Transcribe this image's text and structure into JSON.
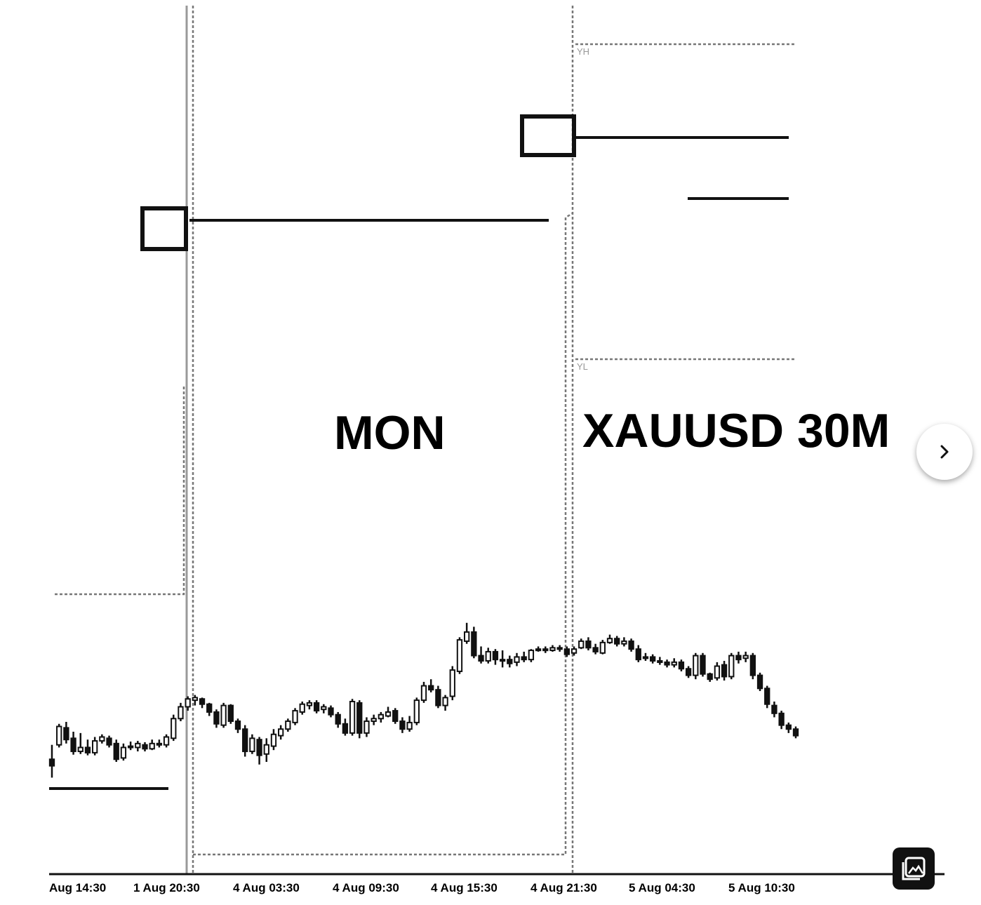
{
  "chart_data": {
    "type": "candlestick",
    "title": "",
    "xlabel": "",
    "ylabel": "",
    "x_ticks": [
      "Aug 14:30",
      "1 Aug 20:30",
      "4 Aug 03:30",
      "4 Aug 09:30",
      "4 Aug 15:30",
      "4 Aug 21:30",
      "5 Aug 04:30",
      "5 Aug 10:30"
    ],
    "annotations": [
      "MON",
      "XAUUSD 30M"
    ],
    "level_labels": [
      "YH",
      "YL"
    ],
    "candles": [
      [
        1028,
        1018,
        1050,
        1000
      ],
      [
        1050,
        1078,
        1082,
        1046
      ],
      [
        1076,
        1058,
        1085,
        1052
      ],
      [
        1060,
        1040,
        1070,
        1035
      ],
      [
        1040,
        1046,
        1068,
        1036
      ],
      [
        1046,
        1038,
        1058,
        1034
      ],
      [
        1038,
        1056,
        1062,
        1034
      ],
      [
        1056,
        1062,
        1066,
        1052
      ],
      [
        1060,
        1050,
        1064,
        1046
      ],
      [
        1052,
        1028,
        1058,
        1024
      ],
      [
        1030,
        1046,
        1052,
        1026
      ],
      [
        1046,
        1048,
        1055,
        1042
      ],
      [
        1046,
        1052,
        1056,
        1040
      ],
      [
        1050,
        1044,
        1054,
        1040
      ],
      [
        1044,
        1052,
        1058,
        1042
      ],
      [
        1052,
        1050,
        1058,
        1046
      ],
      [
        1050,
        1062,
        1066,
        1046
      ],
      [
        1060,
        1090,
        1096,
        1056
      ],
      [
        1090,
        1108,
        1114,
        1086
      ],
      [
        1108,
        1120,
        1124,
        1102
      ],
      [
        1118,
        1122,
        1126,
        1110
      ],
      [
        1120,
        1112,
        1122,
        1106
      ],
      [
        1112,
        1100,
        1114,
        1094
      ],
      [
        1100,
        1082,
        1104,
        1076
      ],
      [
        1080,
        1110,
        1114,
        1076
      ],
      [
        1110,
        1086,
        1112,
        1082
      ],
      [
        1086,
        1074,
        1090,
        1068
      ],
      [
        1074,
        1040,
        1080,
        1032
      ],
      [
        1040,
        1060,
        1066,
        1036
      ],
      [
        1058,
        1034,
        1062,
        1020
      ],
      [
        1036,
        1050,
        1060,
        1024
      ],
      [
        1048,
        1066,
        1074,
        1042
      ],
      [
        1064,
        1074,
        1080,
        1058
      ],
      [
        1074,
        1086,
        1090,
        1070
      ],
      [
        1084,
        1102,
        1106,
        1080
      ],
      [
        1100,
        1112,
        1116,
        1096
      ],
      [
        1110,
        1114,
        1118,
        1104
      ],
      [
        1114,
        1102,
        1118,
        1098
      ],
      [
        1104,
        1108,
        1112,
        1098
      ],
      [
        1106,
        1096,
        1110,
        1092
      ],
      [
        1096,
        1082,
        1100,
        1076
      ],
      [
        1082,
        1068,
        1090,
        1064
      ],
      [
        1068,
        1116,
        1120,
        1064
      ],
      [
        1114,
        1068,
        1118,
        1060
      ],
      [
        1068,
        1086,
        1092,
        1062
      ],
      [
        1086,
        1090,
        1096,
        1080
      ],
      [
        1090,
        1096,
        1100,
        1084
      ],
      [
        1094,
        1100,
        1108,
        1092
      ],
      [
        1102,
        1086,
        1106,
        1082
      ],
      [
        1086,
        1074,
        1092,
        1068
      ],
      [
        1074,
        1084,
        1094,
        1070
      ],
      [
        1084,
        1118,
        1122,
        1080
      ],
      [
        1118,
        1140,
        1146,
        1114
      ],
      [
        1140,
        1134,
        1150,
        1130
      ],
      [
        1134,
        1110,
        1140,
        1106
      ],
      [
        1110,
        1122,
        1126,
        1102
      ],
      [
        1124,
        1164,
        1170,
        1118
      ],
      [
        1162,
        1210,
        1214,
        1158
      ],
      [
        1208,
        1222,
        1236,
        1204
      ],
      [
        1222,
        1186,
        1230,
        1182
      ],
      [
        1186,
        1178,
        1200,
        1174
      ],
      [
        1178,
        1192,
        1198,
        1174
      ],
      [
        1192,
        1180,
        1196,
        1172
      ],
      [
        1180,
        1178,
        1194,
        1168
      ],
      [
        1180,
        1174,
        1186,
        1168
      ],
      [
        1176,
        1184,
        1190,
        1170
      ],
      [
        1184,
        1180,
        1192,
        1176
      ],
      [
        1180,
        1194,
        1196,
        1176
      ],
      [
        1194,
        1196,
        1200,
        1192
      ],
      [
        1196,
        1194,
        1200,
        1190
      ],
      [
        1194,
        1198,
        1202,
        1192
      ],
      [
        1198,
        1196,
        1202,
        1192
      ],
      [
        1196,
        1188,
        1200,
        1184
      ],
      [
        1190,
        1196,
        1200,
        1186
      ],
      [
        1198,
        1208,
        1212,
        1196
      ],
      [
        1208,
        1198,
        1214,
        1194
      ],
      [
        1198,
        1192,
        1204,
        1188
      ],
      [
        1190,
        1206,
        1210,
        1188
      ],
      [
        1206,
        1212,
        1218,
        1204
      ],
      [
        1212,
        1204,
        1216,
        1200
      ],
      [
        1204,
        1208,
        1214,
        1200
      ],
      [
        1208,
        1196,
        1212,
        1192
      ],
      [
        1196,
        1180,
        1202,
        1176
      ],
      [
        1182,
        1184,
        1190,
        1178
      ],
      [
        1184,
        1178,
        1188,
        1174
      ],
      [
        1178,
        1176,
        1184,
        1172
      ],
      [
        1176,
        1172,
        1180,
        1168
      ],
      [
        1172,
        1176,
        1182,
        1168
      ],
      [
        1176,
        1166,
        1180,
        1162
      ],
      [
        1166,
        1156,
        1170,
        1152
      ],
      [
        1156,
        1186,
        1190,
        1150
      ],
      [
        1186,
        1158,
        1190,
        1154
      ],
      [
        1158,
        1150,
        1160,
        1146
      ],
      [
        1152,
        1170,
        1176,
        1148
      ],
      [
        1172,
        1154,
        1178,
        1148
      ],
      [
        1154,
        1186,
        1190,
        1150
      ],
      [
        1186,
        1180,
        1192,
        1174
      ],
      [
        1182,
        1186,
        1192,
        1176
      ],
      [
        1186,
        1156,
        1190,
        1150
      ],
      [
        1156,
        1136,
        1160,
        1132
      ],
      [
        1136,
        1112,
        1140,
        1106
      ],
      [
        1110,
        1098,
        1116,
        1092
      ],
      [
        1098,
        1080,
        1102,
        1074
      ],
      [
        1080,
        1074,
        1084,
        1068
      ],
      [
        1074,
        1064,
        1078,
        1060
      ]
    ],
    "horizontal_levels": [
      {
        "label": "YH",
        "style": "dotted",
        "value": 1256
      },
      {
        "label": "YL",
        "style": "dotted",
        "value": 956
      },
      {
        "label": "",
        "style": "solid",
        "value": 1121
      },
      {
        "label": "",
        "style": "solid",
        "value": 1186
      },
      {
        "label": "",
        "style": "solid",
        "value": 1157
      },
      {
        "label": "",
        "style": "solid",
        "value": 880
      }
    ],
    "grid": false,
    "legend": "none"
  },
  "icons": {
    "next": "chevron-right-icon",
    "gallery": "image-gallery-icon"
  }
}
